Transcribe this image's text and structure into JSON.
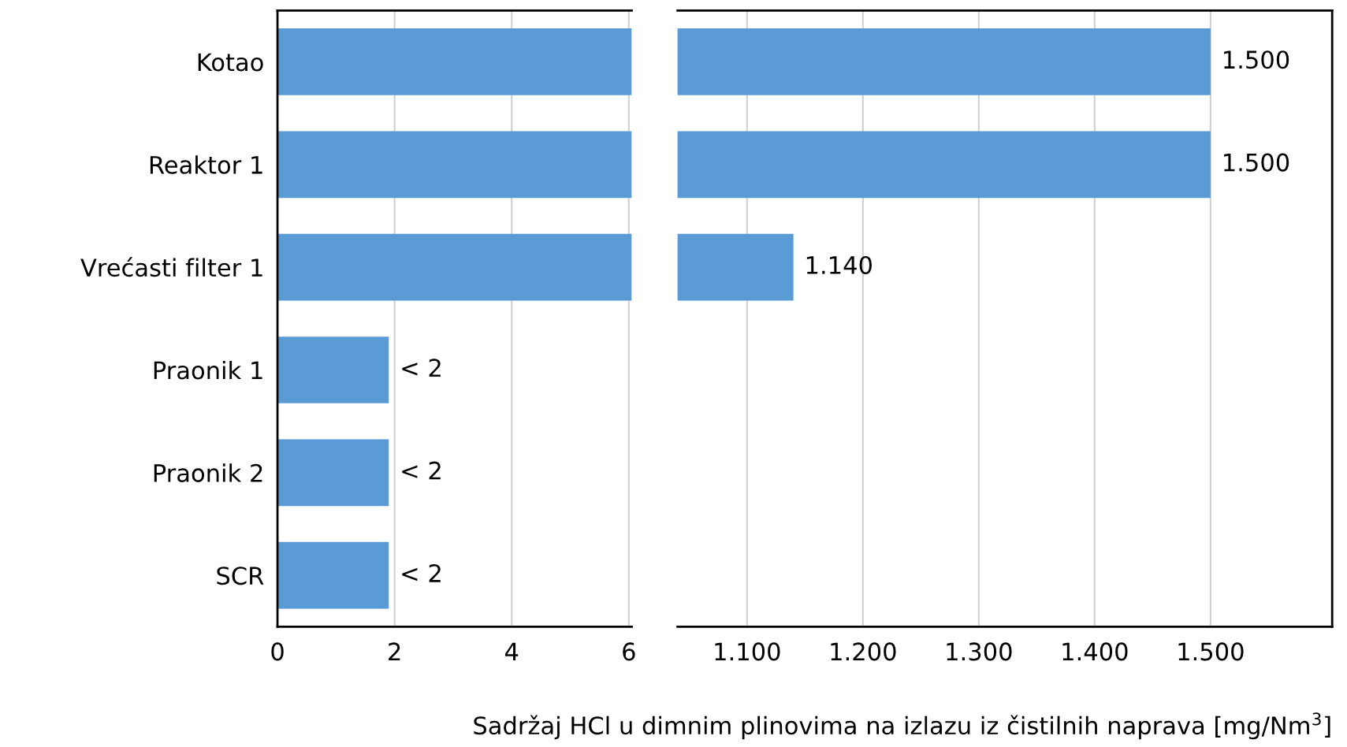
{
  "chart_data": [
    {
      "type": "bar",
      "orientation": "horizontal",
      "categories": [
        "Kotao",
        "Reaktor 1",
        "Vrećasti filter 1",
        "Praonik 1",
        "Praonik 2",
        "SCR"
      ],
      "values": [
        6.05,
        6.05,
        6.05,
        1.9,
        1.9,
        1.9
      ],
      "color": "#5b9bd5",
      "value_labels": [
        null,
        null,
        null,
        "< 2",
        "< 2",
        "< 2"
      ],
      "xlim": [
        0,
        6.05
      ],
      "xticks": [
        0,
        2,
        4,
        6
      ],
      "grid": "x"
    },
    {
      "type": "bar",
      "orientation": "horizontal",
      "categories": [
        null,
        null,
        null,
        null,
        null,
        null
      ],
      "values": [
        1500,
        1500,
        1140,
        null,
        null,
        null
      ],
      "color": "#5b9bd5",
      "value_labels": [
        "1.500",
        "1.500",
        "1.140",
        null,
        null,
        null
      ],
      "xlim": [
        1040,
        1605
      ],
      "xticks": [
        {
          "value": 1100,
          "label": "1.100"
        },
        {
          "value": 1200,
          "label": "1.200"
        },
        {
          "value": 1300,
          "label": "1.300"
        },
        {
          "value": 1400,
          "label": "1.400"
        },
        {
          "value": 1500,
          "label": "1.500"
        }
      ],
      "grid": "x",
      "tick_labels": "x",
      "xlabel": "Sadržaj HCl u dimnim plinovima na izlazu iz čistilnih naprava [mg/Nm$^{3}$]"
    }
  ]
}
